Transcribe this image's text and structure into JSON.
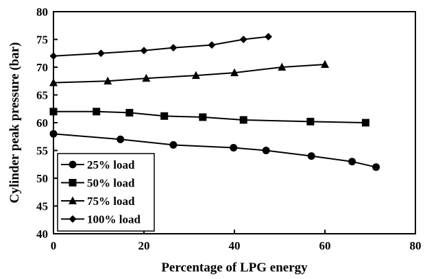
{
  "chart_data": {
    "type": "line",
    "title": "",
    "xlabel": "Percentage of LPG energy",
    "ylabel": "Cylinder peak pressure (bar)",
    "xlim": [
      0,
      80
    ],
    "ylim": [
      40,
      80
    ],
    "xticks": [
      0,
      20,
      40,
      60,
      80
    ],
    "yticks": [
      40,
      45,
      50,
      55,
      60,
      65,
      70,
      75,
      80
    ],
    "grid": false,
    "legend_position": "bottom-left",
    "series": [
      {
        "name": "25% load",
        "marker": "circle",
        "x": [
          0,
          14.8,
          26.5,
          39.8,
          47,
          57,
          66,
          71.3
        ],
        "y": [
          58,
          57,
          56,
          55.5,
          55,
          54,
          53,
          52
        ]
      },
      {
        "name": "50% load",
        "marker": "square",
        "x": [
          0,
          9.5,
          16.8,
          24.5,
          33,
          42,
          56.8,
          69
        ],
        "y": [
          62,
          62,
          61.8,
          61.2,
          61,
          60.5,
          60.2,
          60
        ]
      },
      {
        "name": "75% load",
        "marker": "triangle",
        "x": [
          0,
          12,
          20.5,
          31.5,
          40,
          50.5,
          60
        ],
        "y": [
          67.2,
          67.5,
          68,
          68.5,
          69,
          70,
          70.5
        ]
      },
      {
        "name": "100% load",
        "marker": "diamond",
        "x": [
          0,
          10.5,
          20,
          26.5,
          35,
          42,
          47.5
        ],
        "y": [
          72,
          72.5,
          73,
          73.5,
          74,
          75,
          75.5
        ]
      }
    ]
  }
}
